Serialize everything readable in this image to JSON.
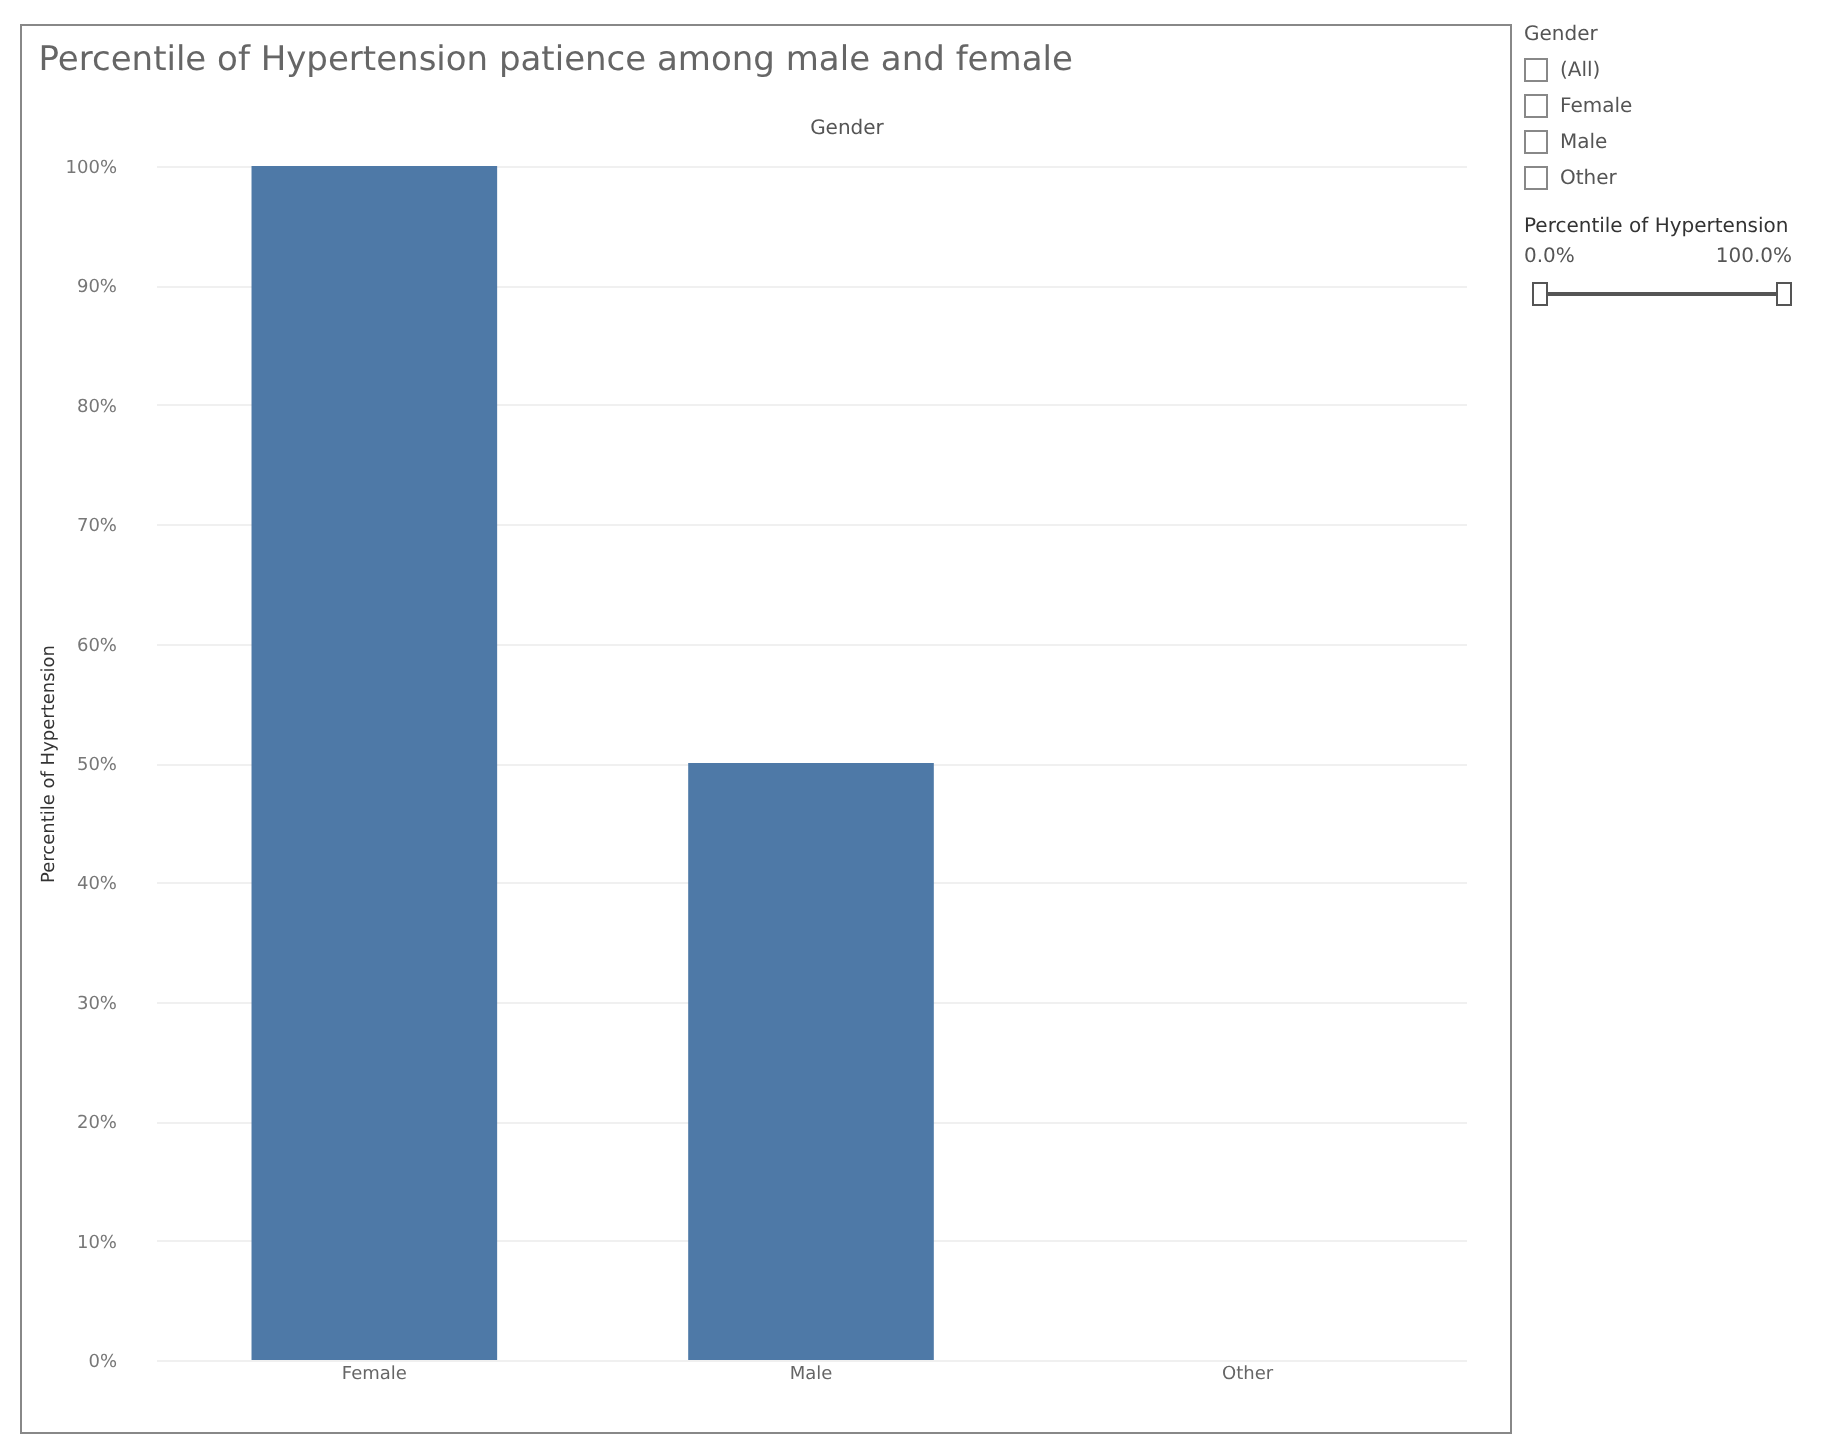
{
  "chart_data": {
    "type": "bar",
    "title": "Percentile of Hypertension patience among male and female",
    "xlabel": "Gender",
    "ylabel": "Percentile of Hypertension",
    "categories": [
      "Female",
      "Male",
      "Other"
    ],
    "values": [
      100,
      50,
      null
    ],
    "color": "#4e79a7",
    "ylim": [
      0,
      100
    ],
    "yticks": [
      {
        "value": 0,
        "label": "0%"
      },
      {
        "value": 10,
        "label": "10%"
      },
      {
        "value": 20,
        "label": "20%"
      },
      {
        "value": 30,
        "label": "30%"
      },
      {
        "value": 40,
        "label": "40%"
      },
      {
        "value": 50,
        "label": "50%"
      },
      {
        "value": 60,
        "label": "60%"
      },
      {
        "value": 70,
        "label": "70%"
      },
      {
        "value": 80,
        "label": "80%"
      },
      {
        "value": 90,
        "label": "90%"
      },
      {
        "value": 100,
        "label": "100%"
      }
    ],
    "grid": "y",
    "annotations": [
      "Gender",
      "(All)",
      "Female",
      "Male",
      "Other",
      "Percentile of Hypertension",
      "0.0%",
      "100.0%"
    ]
  }
}
